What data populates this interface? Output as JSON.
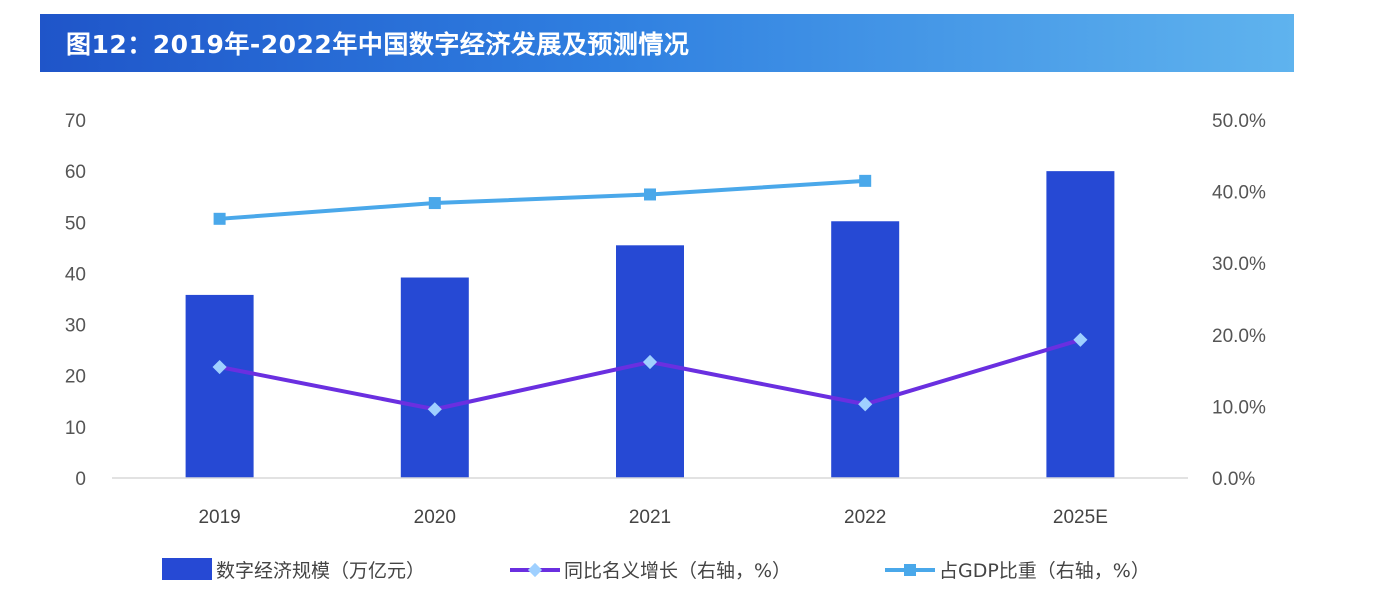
{
  "header": {
    "title": "图12：2019年-2022年中国数字经济发展及预测情况"
  },
  "chart_data": {
    "type": "bar",
    "title": "图12：2019年-2022年中国数字经济发展及预测情况",
    "categories": [
      "2019",
      "2020",
      "2021",
      "2022",
      "2025E"
    ],
    "y_left": {
      "ylim": [
        0,
        70
      ],
      "ticks": [
        "0",
        "10",
        "20",
        "30",
        "40",
        "50",
        "60",
        "70"
      ]
    },
    "y_right": {
      "ylim": [
        0,
        0.5
      ],
      "ticks": [
        "0.0%",
        "10.0%",
        "20.0%",
        "30.0%",
        "40.0%",
        "50.0%"
      ]
    },
    "series": [
      {
        "name": "数字经济规模（万亿元）",
        "type": "bar",
        "axis": "left",
        "color": "#2649d4",
        "values": [
          35.8,
          39.2,
          45.5,
          50.2,
          60.0
        ]
      },
      {
        "name": "同比名义增长（右轴，%）",
        "type": "line",
        "axis": "right",
        "color": "#6a2fe0",
        "marker_color": "#9fd0ff",
        "values": [
          0.155,
          0.096,
          0.162,
          0.103,
          0.193
        ]
      },
      {
        "name": "占GDP比重（右轴，%）",
        "type": "line",
        "axis": "right",
        "color": "#4aa8ea",
        "marker_color": "#4aa8ea",
        "values": [
          0.362,
          0.384,
          0.396,
          0.415,
          null
        ]
      }
    ],
    "legend": "bottom"
  }
}
